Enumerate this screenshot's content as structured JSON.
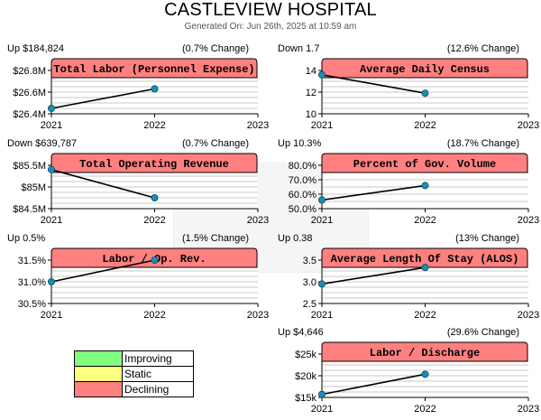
{
  "title": "CASTLEVIEW HOSPITAL",
  "subtitle": "Generated On: Jun 26th, 2025 at 10:59 am",
  "colors": {
    "improving": "#80ff80",
    "static": "#ffff80",
    "declining": "#ff8080",
    "marker": "#1a8fb5",
    "line": "#000000"
  },
  "legend": [
    {
      "label": "Improving",
      "color": "#80ff80"
    },
    {
      "label": "Static",
      "color": "#ffff80"
    },
    {
      "label": "Declining",
      "color": "#ff8080"
    }
  ],
  "chart_data": [
    {
      "type": "line",
      "title": "Total Labor (Personnel Expense)",
      "kpi_left": "Up $184,824",
      "kpi_right": "(0.7% Change)",
      "status": "declining",
      "x_ticks": [
        "2021",
        "2022",
        "2023"
      ],
      "ylim": [
        26400000,
        26800000
      ],
      "y_ticks": [
        {
          "v": 26400000,
          "label": "$26.4M"
        },
        {
          "v": 26600000,
          "label": "$26.6M"
        },
        {
          "v": 26800000,
          "label": "$26.8M"
        }
      ],
      "grid_step": 50000,
      "series": [
        {
          "x": [
            "2021",
            "2022"
          ],
          "y": [
            26450000,
            26630000
          ]
        }
      ]
    },
    {
      "type": "line",
      "title": "Average Daily Census",
      "kpi_left": "Down 1.7",
      "kpi_right": "(12.6% Change)",
      "status": "declining",
      "x_ticks": [
        "2021",
        "2022",
        "2023"
      ],
      "ylim": [
        10,
        14
      ],
      "y_ticks": [
        {
          "v": 10,
          "label": "10"
        },
        {
          "v": 12,
          "label": "12"
        },
        {
          "v": 14,
          "label": "14"
        }
      ],
      "grid_step": 0.5,
      "series": [
        {
          "x": [
            "2021",
            "2022"
          ],
          "y": [
            13.6,
            11.9
          ]
        }
      ]
    },
    {
      "type": "line",
      "title": "Total Operating Revenue",
      "kpi_left": "Down $639,787",
      "kpi_right": "(0.7% Change)",
      "status": "declining",
      "x_ticks": [
        "2021",
        "2022",
        "2023"
      ],
      "ylim": [
        84500000,
        85500000
      ],
      "y_ticks": [
        {
          "v": 84500000,
          "label": "$84.5M"
        },
        {
          "v": 85000000,
          "label": "$85M"
        },
        {
          "v": 85500000,
          "label": "$85.5M"
        }
      ],
      "grid_step": 125000,
      "series": [
        {
          "x": [
            "2021",
            "2022"
          ],
          "y": [
            85400000,
            84750000
          ]
        }
      ]
    },
    {
      "type": "line",
      "title": "Percent of Gov. Volume",
      "kpi_left": "Up 10.3%",
      "kpi_right": "(18.7% Change)",
      "status": "declining",
      "x_ticks": [
        "2021",
        "2022",
        "2023"
      ],
      "ylim": [
        50,
        80
      ],
      "y_ticks": [
        {
          "v": 50,
          "label": "50.0%"
        },
        {
          "v": 60,
          "label": "60.0%"
        },
        {
          "v": 70,
          "label": "70.0%"
        },
        {
          "v": 80,
          "label": "80.0%"
        }
      ],
      "grid_step": 5,
      "series": [
        {
          "x": [
            "2021",
            "2022"
          ],
          "y": [
            56,
            66
          ]
        }
      ]
    },
    {
      "type": "line",
      "title": "Labor / Op. Rev.",
      "kpi_left": "Up 0.5%",
      "kpi_right": "(1.5% Change)",
      "status": "declining",
      "x_ticks": [
        "2021",
        "2022",
        "2023"
      ],
      "ylim": [
        30.5,
        31.5
      ],
      "y_ticks": [
        {
          "v": 30.5,
          "label": "30.5%"
        },
        {
          "v": 31.0,
          "label": "31.0%"
        },
        {
          "v": 31.5,
          "label": "31.5%"
        }
      ],
      "grid_step": 0.125,
      "series": [
        {
          "x": [
            "2021",
            "2022"
          ],
          "y": [
            31.0,
            31.5
          ]
        }
      ]
    },
    {
      "type": "line",
      "title": "Average Length Of Stay (ALOS)",
      "kpi_left": "Up 0.38",
      "kpi_right": "(13% Change)",
      "status": "declining",
      "x_ticks": [
        "2021",
        "2022",
        "2023"
      ],
      "ylim": [
        2.5,
        3.5
      ],
      "y_ticks": [
        {
          "v": 2.5,
          "label": "2.5"
        },
        {
          "v": 3.0,
          "label": "3.0"
        },
        {
          "v": 3.5,
          "label": "3.5"
        }
      ],
      "grid_step": 0.125,
      "series": [
        {
          "x": [
            "2021",
            "2022"
          ],
          "y": [
            2.95,
            3.33
          ]
        }
      ]
    },
    {
      "type": "line",
      "title": "Labor / Discharge",
      "kpi_left": "Up $4,646",
      "kpi_right": "(29.6% Change)",
      "status": "declining",
      "x_ticks": [
        "2021",
        "2022",
        "2023"
      ],
      "ylim": [
        15000,
        25000
      ],
      "y_ticks": [
        {
          "v": 15000,
          "label": "$15k"
        },
        {
          "v": 20000,
          "label": "$20k"
        },
        {
          "v": 25000,
          "label": "$25k"
        }
      ],
      "grid_step": 1250,
      "series": [
        {
          "x": [
            "2021",
            "2022"
          ],
          "y": [
            15700,
            20350
          ]
        }
      ]
    }
  ]
}
